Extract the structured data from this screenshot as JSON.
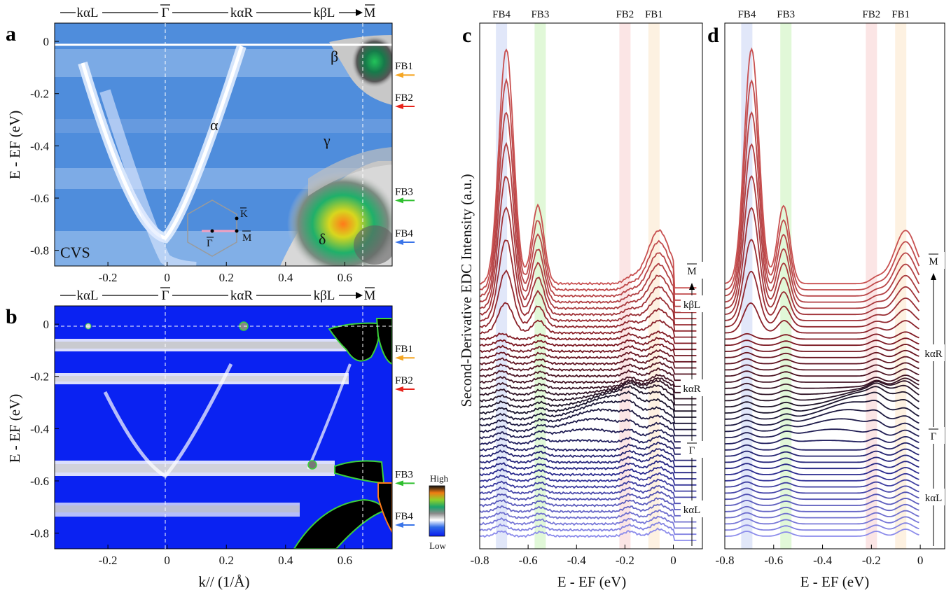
{
  "figure": {
    "panel_labels": {
      "a": "a",
      "b": "b",
      "c": "c",
      "d": "d"
    },
    "path_labels": {
      "kaL": "kαL",
      "gamma": "Γ",
      "kaR": "kαR",
      "kbL": "kβL",
      "M": "M"
    },
    "annotations": {
      "alpha": "α",
      "beta": "β",
      "gamma": "γ",
      "delta": "δ",
      "cvs": "CVS",
      "K": "K",
      "G": "Γ",
      "Mbz": "M"
    },
    "fb_labels": [
      "FB1",
      "FB2",
      "FB3",
      "FB4"
    ],
    "fb_arrow_colors": [
      "#f5a623",
      "#e8231b",
      "#2fbf2f",
      "#3a74e8"
    ],
    "colorbar": {
      "high": "High",
      "low": "Low"
    }
  },
  "chart_data": [
    {
      "id": "a",
      "type": "heatmap",
      "title": "",
      "xlabel": "",
      "ylabel": "E - EF (eV)",
      "xlim": [
        -0.38,
        0.76
      ],
      "ylim": [
        -0.86,
        0.07
      ],
      "xticks": [
        "-0.2",
        "0",
        "0.2",
        "0.4",
        "0.6"
      ],
      "xtick_values": [
        -0.2,
        0,
        0.2,
        0.4,
        0.6
      ],
      "yticks": [
        "0",
        "-0.2",
        "-0.4",
        "-0.6",
        "-0.8"
      ],
      "ytick_values": [
        0,
        -0.2,
        -0.4,
        -0.6,
        -0.8
      ],
      "flat_bands_eV": {
        "FB1": -0.07,
        "FB2": -0.19,
        "FB3": -0.55,
        "FB4": -0.71
      },
      "dashed_k": [
        0,
        0.665
      ]
    },
    {
      "id": "b",
      "type": "heatmap",
      "xlabel": "k// (1/Å)",
      "ylabel": "E - EF (eV)",
      "xlim": [
        -0.38,
        0.76
      ],
      "ylim": [
        -0.86,
        0.07
      ],
      "xticks": [
        "-0.2",
        "0",
        "0.2",
        "0.4",
        "0.6"
      ],
      "xtick_values": [
        -0.2,
        0,
        0.2,
        0.4,
        0.6
      ],
      "yticks": [
        "0",
        "-0.2",
        "-0.4",
        "-0.6",
        "-0.8"
      ],
      "ytick_values": [
        0,
        -0.2,
        -0.4,
        -0.6,
        -0.8
      ]
    },
    {
      "id": "c",
      "type": "line",
      "xlabel": "E - EF (eV)",
      "ylabel": "Second-Derivative EDC Intensity (a.u.)",
      "xlim": [
        -0.8,
        0.12
      ],
      "xticks": [
        "-0.8",
        "-0.6",
        "-0.4",
        "-0.2",
        "0"
      ],
      "xtick_values": [
        -0.8,
        -0.6,
        -0.4,
        -0.2,
        0
      ],
      "fb_bands_eV": {
        "FB4": -0.71,
        "FB3": -0.55,
        "FB2": -0.2,
        "FB1": -0.08
      },
      "n_curves": 42,
      "side_labels": [
        "M",
        "kβL",
        "kαR",
        "Γ",
        "kαL"
      ]
    },
    {
      "id": "d",
      "type": "line",
      "xlabel": "E - EF (eV)",
      "xlim": [
        -0.8,
        0.1
      ],
      "xticks": [
        "-0.8",
        "-0.6",
        "-0.4",
        "-0.2",
        "0"
      ],
      "xtick_values": [
        -0.8,
        -0.6,
        -0.4,
        -0.2,
        0
      ],
      "fb_bands_eV": {
        "FB4": -0.71,
        "FB3": -0.55,
        "FB2": -0.2,
        "FB1": -0.08
      },
      "n_curves": 42,
      "side_labels": [
        "M",
        "kαR",
        "Γ",
        "kαL"
      ]
    }
  ]
}
